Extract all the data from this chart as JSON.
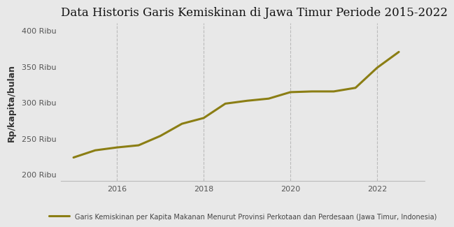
{
  "title": "Data Historis Garis Kemiskinan di Jawa Timur Periode 2015-2022",
  "ylabel": "Rp/kapita/bulan",
  "line_color": "#8B7E14",
  "line_width": 2.2,
  "background_color": "#e8e8e8",
  "legend_label": "Garis Kemiskinan per Kapita Makanan Menurut Provinsi Perkotaan dan Perdesaan (Jawa Timur, Indonesia)",
  "x": [
    2015.0,
    2015.5,
    2016.0,
    2016.5,
    2017.0,
    2017.5,
    2018.0,
    2018.5,
    2019.0,
    2019.5,
    2020.0,
    2020.5,
    2021.0,
    2021.5,
    2022.0,
    2022.5
  ],
  "y": [
    223000,
    233000,
    237000,
    240000,
    253000,
    270000,
    278000,
    298000,
    302000,
    305000,
    314000,
    315000,
    315000,
    320000,
    348000,
    370000
  ],
  "ylim": [
    190000,
    410000
  ],
  "xlim": [
    2014.7,
    2023.1
  ],
  "yticks": [
    200000,
    250000,
    300000,
    350000,
    400000
  ],
  "ytick_labels": [
    "200 Ribu",
    "250 Ribu",
    "300 Ribu",
    "350 Ribu",
    "400 Ribu"
  ],
  "xticks": [
    2016,
    2018,
    2020,
    2022
  ],
  "grid_color": "#bbbbbb",
  "title_fontsize": 12,
  "tick_fontsize": 8,
  "ylabel_fontsize": 9,
  "legend_fontsize": 7
}
